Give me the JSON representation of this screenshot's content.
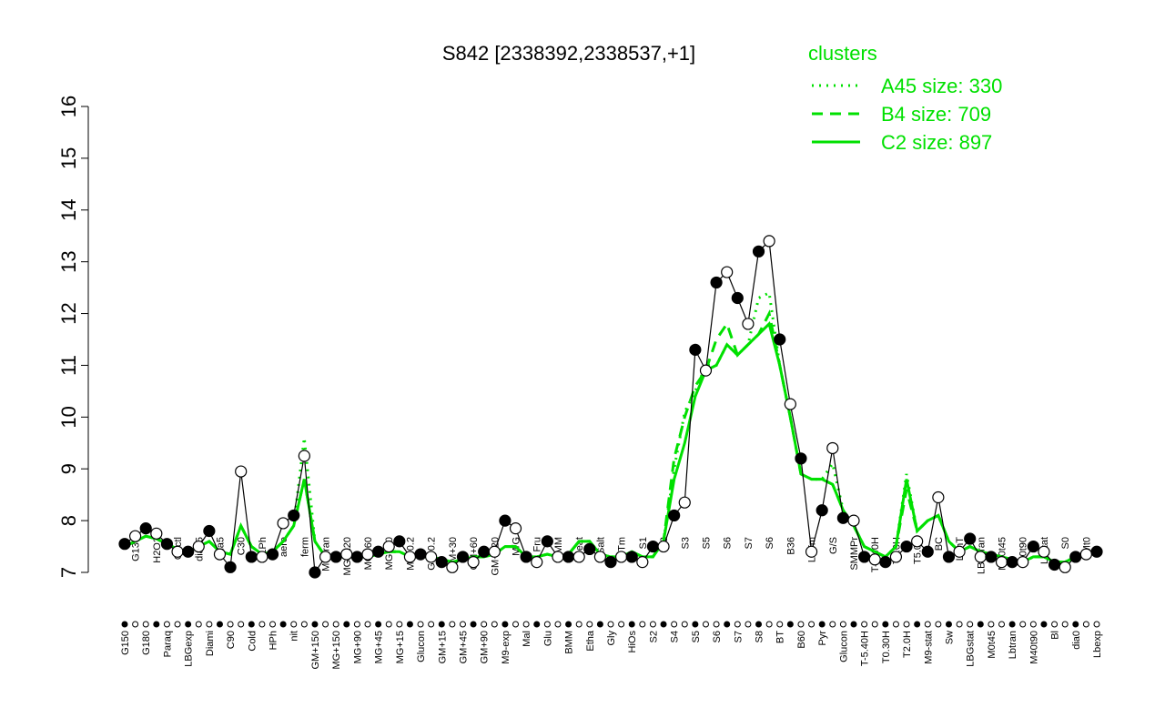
{
  "chart_data": {
    "type": "line",
    "title": "S842 [2338392,2338537,+1]",
    "legend_title": "clusters",
    "categories": [
      "G150",
      "G135",
      "G180",
      "H2O2",
      "Paraq",
      "Oxctl",
      "LBGexp",
      "dia15",
      "Diami",
      "dia5",
      "C90",
      "C30",
      "Cold",
      "LPh",
      "HPh",
      "aero",
      "nit",
      "ferm",
      "GM+150",
      "M9-tran",
      "MG+150",
      "MG+120",
      "MG+90",
      "MG+60",
      "MG+45",
      "MG+30",
      "MG+15",
      "MG-0.2",
      "Glucon",
      "GM-0.2",
      "GM+15",
      "GM+30",
      "GM+45",
      "GM+60",
      "GM+90",
      "GM+120",
      "M9-exp",
      "M/G",
      "Mal",
      "Fru",
      "Glu",
      "SMM",
      "BMM",
      "Heat",
      "Etha",
      "Salt",
      "Gly",
      "HiTm",
      "HiOs",
      "S1",
      "S2",
      "S3",
      "S4",
      "S3",
      "S5",
      "S5",
      "S6",
      "S6",
      "S7",
      "S7",
      "S8",
      "S6",
      "BT",
      "B36",
      "B60",
      "LoTm",
      "Pyr",
      "G/S",
      "Glucon",
      "SMMPr",
      "T-5.40H",
      "T-1.40H",
      "T0.30H",
      "T1.0H",
      "T2.0H",
      "T5.0H",
      "M9-stat",
      "BC",
      "Sw",
      "LPhT",
      "LBGstat",
      "LBGtran",
      "M0t45",
      "M40t45",
      "Lbtran",
      "M0t90",
      "M40t90",
      "Lbstat",
      "Bl",
      "S0",
      "dia0",
      "Mt0",
      "Lbexp"
    ],
    "values": [
      7.55,
      7.7,
      7.85,
      7.75,
      7.55,
      7.4,
      7.4,
      7.5,
      7.8,
      7.35,
      7.1,
      8.95,
      7.3,
      7.3,
      7.35,
      7.95,
      8.1,
      9.25,
      7.0,
      7.3,
      7.3,
      7.35,
      7.3,
      7.35,
      7.4,
      7.5,
      7.6,
      7.3,
      7.35,
      7.3,
      7.2,
      7.1,
      7.3,
      7.2,
      7.4,
      7.4,
      8.0,
      7.85,
      7.3,
      7.2,
      7.6,
      7.3,
      7.3,
      7.3,
      7.45,
      7.3,
      7.2,
      7.3,
      7.3,
      7.2,
      7.5,
      7.5,
      8.1,
      8.35,
      11.3,
      10.9,
      12.6,
      12.8,
      12.3,
      11.8,
      13.2,
      13.4,
      11.5,
      10.25,
      9.2,
      7.4,
      8.2,
      9.4,
      8.05,
      8.0,
      7.3,
      7.25,
      7.2,
      7.3,
      7.5,
      7.6,
      7.4,
      8.45,
      7.3,
      7.4,
      7.65,
      7.3,
      7.3,
      7.2,
      7.2,
      7.2,
      7.5,
      7.4,
      7.15,
      7.1,
      7.3,
      7.35,
      7.4
    ],
    "color": "#000000",
    "series": [
      {
        "name": "A45 size: 330",
        "color": "#00e000",
        "dash": "dotted",
        "values": [
          7.5,
          7.6,
          7.7,
          7.65,
          7.55,
          7.45,
          7.4,
          7.5,
          7.6,
          7.4,
          7.35,
          7.9,
          7.5,
          7.35,
          7.4,
          7.6,
          7.9,
          9.6,
          7.6,
          7.3,
          7.3,
          7.3,
          7.3,
          7.3,
          7.35,
          7.4,
          7.4,
          7.3,
          7.3,
          7.3,
          7.25,
          7.2,
          7.25,
          7.3,
          7.3,
          7.35,
          7.5,
          7.5,
          7.3,
          7.3,
          7.35,
          7.3,
          7.35,
          7.6,
          7.6,
          7.35,
          7.3,
          7.3,
          7.4,
          7.3,
          7.3,
          7.6,
          9.0,
          10.1,
          10.5,
          11.0,
          11.0,
          11.4,
          11.2,
          11.4,
          12.3,
          12.4,
          11.0,
          10.0,
          8.9,
          8.8,
          8.8,
          9.1,
          8.2,
          7.9,
          7.5,
          7.4,
          7.3,
          7.5,
          8.9,
          7.8,
          8.0,
          8.1,
          7.6,
          7.4,
          7.5,
          7.4,
          7.35,
          7.3,
          7.25,
          7.2,
          7.3,
          7.3,
          7.2,
          7.2,
          7.3,
          7.35,
          7.4
        ]
      },
      {
        "name": "B4 size: 709",
        "color": "#00e000",
        "dash": "dashed",
        "values": [
          7.5,
          7.6,
          7.7,
          7.65,
          7.55,
          7.45,
          7.4,
          7.5,
          7.6,
          7.4,
          7.35,
          7.9,
          7.5,
          7.35,
          7.4,
          7.6,
          7.9,
          8.8,
          7.6,
          7.3,
          7.3,
          7.3,
          7.3,
          7.3,
          7.35,
          7.4,
          7.4,
          7.3,
          7.3,
          7.3,
          7.25,
          7.2,
          7.25,
          7.3,
          7.3,
          7.35,
          7.5,
          7.5,
          7.3,
          7.3,
          7.35,
          7.3,
          7.35,
          7.6,
          7.6,
          7.35,
          7.3,
          7.3,
          7.4,
          7.3,
          7.3,
          7.6,
          9.2,
          10.0,
          10.6,
          10.9,
          11.5,
          11.8,
          11.2,
          11.4,
          11.6,
          12.0,
          11.0,
          10.0,
          8.9,
          8.8,
          8.8,
          8.7,
          8.2,
          7.9,
          7.5,
          7.4,
          7.3,
          7.5,
          8.6,
          7.8,
          8.0,
          8.1,
          7.6,
          7.4,
          7.5,
          7.4,
          7.35,
          7.3,
          7.25,
          7.2,
          7.3,
          7.3,
          7.2,
          7.2,
          7.3,
          7.35,
          7.4
        ]
      },
      {
        "name": "C2 size: 897",
        "color": "#00e000",
        "dash": "solid",
        "values": [
          7.5,
          7.6,
          7.7,
          7.65,
          7.55,
          7.45,
          7.4,
          7.5,
          7.6,
          7.4,
          7.35,
          7.9,
          7.5,
          7.35,
          7.4,
          7.6,
          7.9,
          8.8,
          7.6,
          7.3,
          7.3,
          7.3,
          7.3,
          7.3,
          7.35,
          7.4,
          7.4,
          7.3,
          7.3,
          7.3,
          7.25,
          7.2,
          7.25,
          7.3,
          7.3,
          7.35,
          7.5,
          7.5,
          7.3,
          7.3,
          7.35,
          7.3,
          7.35,
          7.6,
          7.6,
          7.35,
          7.3,
          7.3,
          7.4,
          7.3,
          7.3,
          7.6,
          8.8,
          9.5,
          10.4,
          10.9,
          11.0,
          11.4,
          11.2,
          11.4,
          11.6,
          11.8,
          11.0,
          10.0,
          8.9,
          8.8,
          8.8,
          8.7,
          8.2,
          7.9,
          7.5,
          7.4,
          7.3,
          7.5,
          8.8,
          7.8,
          8.0,
          8.1,
          7.6,
          7.4,
          7.5,
          7.4,
          7.35,
          7.3,
          7.25,
          7.2,
          7.3,
          7.3,
          7.2,
          7.2,
          7.3,
          7.35,
          7.4
        ]
      }
    ],
    "ylim": [
      7,
      16
    ],
    "yticks": [
      7,
      8,
      9,
      10,
      11,
      12,
      13,
      14,
      15,
      16
    ]
  }
}
